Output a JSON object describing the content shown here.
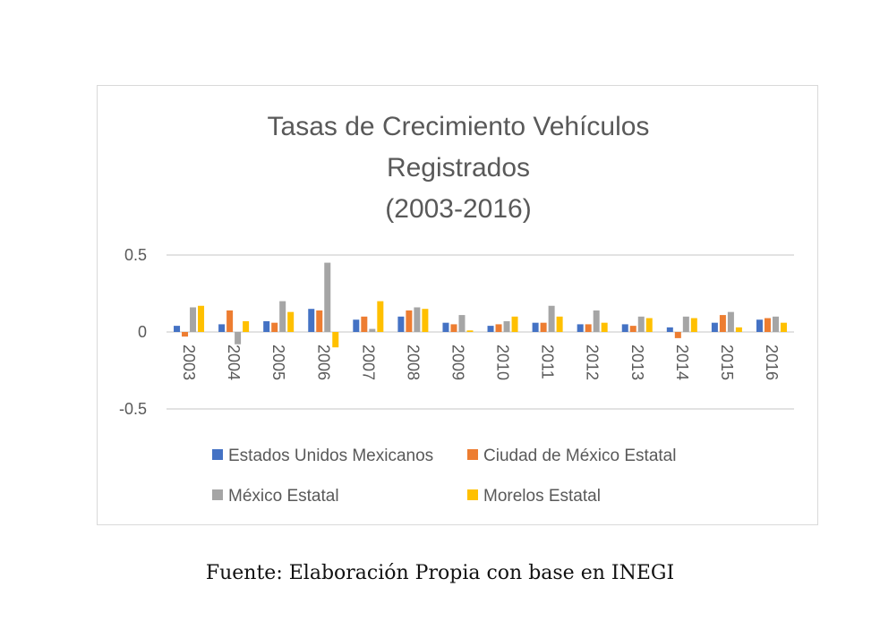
{
  "chart_data": {
    "type": "bar",
    "title": [
      "Tasas de Crecimiento Vehículos",
      "Registrados",
      "(2003-2016)"
    ],
    "categories": [
      "2003",
      "2004",
      "2005",
      "2006",
      "2007",
      "2008",
      "2009",
      "2010",
      "2011",
      "2012",
      "2013",
      "2014",
      "2015",
      "2016"
    ],
    "series": [
      {
        "name": "Estados Unidos Mexicanos",
        "color": "#4472C4",
        "values": [
          0.04,
          0.05,
          0.07,
          0.15,
          0.08,
          0.1,
          0.06,
          0.04,
          0.06,
          0.05,
          0.05,
          0.03,
          0.06,
          0.08
        ]
      },
      {
        "name": "Ciudad de México Estatal",
        "color": "#ED7D31",
        "values": [
          -0.03,
          0.14,
          0.06,
          0.14,
          0.1,
          0.14,
          0.05,
          0.05,
          0.06,
          0.05,
          0.04,
          -0.04,
          0.11,
          0.09
        ]
      },
      {
        "name": "México Estatal",
        "color": "#A5A5A5",
        "values": [
          0.16,
          -0.08,
          0.2,
          0.45,
          0.02,
          0.16,
          0.11,
          0.07,
          0.17,
          0.14,
          0.1,
          0.1,
          0.13,
          0.1
        ]
      },
      {
        "name": "Morelos Estatal",
        "color": "#FFC000",
        "values": [
          0.17,
          0.07,
          0.13,
          -0.1,
          0.2,
          0.15,
          0.01,
          0.1,
          0.1,
          0.06,
          0.09,
          0.09,
          0.03,
          0.06
        ]
      }
    ],
    "yticks": [
      "0.5",
      "0",
      "-0.5"
    ],
    "ylim": [
      -0.5,
      0.5
    ],
    "grid": true,
    "legend_position": "bottom"
  },
  "caption": "Fuente: Elaboración Propia con base en INEGI"
}
